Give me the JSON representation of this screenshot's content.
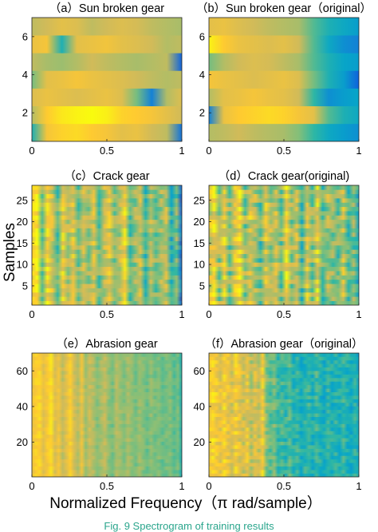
{
  "figure": {
    "ylabel": "Samples",
    "xlabel": "Normalized Frequency（π rad/sample）",
    "caption": "Fig. 9   Spectrogram of training results"
  },
  "colormap": {
    "name": "parula",
    "stops": [
      "#352a87",
      "#0f5cdd",
      "#1481d6",
      "#06a4ca",
      "#2eb7a4",
      "#87bf77",
      "#d1bb59",
      "#fec832",
      "#f9fb0e"
    ]
  },
  "chart_data": [
    {
      "id": "a",
      "type": "heatmap",
      "title": "（a）Sun broken gear",
      "xlim": [
        0,
        1
      ],
      "x_ticks": [
        "0",
        "0.5",
        "1"
      ],
      "ylim": [
        0.5,
        7
      ],
      "y_ticks": [
        "2",
        "4",
        "6"
      ],
      "n_rows": 7,
      "grid": false,
      "rows": [
        [
          0.45,
          0.85,
          0.9,
          0.92,
          0.88,
          0.85,
          0.8,
          0.82,
          0.75,
          0.72,
          0.2
        ],
        [
          0.7,
          0.88,
          0.95,
          0.98,
          1.0,
          0.97,
          0.9,
          0.88,
          0.85,
          0.8,
          0.75
        ],
        [
          0.78,
          0.82,
          0.8,
          0.78,
          0.8,
          0.82,
          0.78,
          0.6,
          0.25,
          0.7,
          0.78
        ],
        [
          0.6,
          0.8,
          0.82,
          0.85,
          0.82,
          0.8,
          0.78,
          0.75,
          0.72,
          0.7,
          0.72
        ],
        [
          0.72,
          0.68,
          0.66,
          0.7,
          0.75,
          0.72,
          0.7,
          0.68,
          0.7,
          0.72,
          0.15
        ],
        [
          0.82,
          0.85,
          0.45,
          0.8,
          0.82,
          0.84,
          0.8,
          0.78,
          0.75,
          0.7,
          0.72
        ],
        [
          0.72,
          0.75,
          0.8,
          0.78,
          0.72,
          0.75,
          0.78,
          0.76,
          0.72,
          0.7,
          0.68
        ]
      ]
    },
    {
      "id": "b",
      "type": "heatmap",
      "title": "（b）Sun broken gear（original）",
      "xlim": [
        0,
        1
      ],
      "x_ticks": [
        "0",
        "0.5",
        "1"
      ],
      "ylim": [
        0.5,
        7
      ],
      "y_ticks": [
        "2",
        "4",
        "6"
      ],
      "n_rows": 7,
      "grid": false,
      "rows": [
        [
          0.7,
          0.72,
          0.75,
          0.72,
          0.7,
          0.68,
          0.62,
          0.5,
          0.4,
          0.35,
          0.3
        ],
        [
          0.25,
          0.82,
          0.88,
          0.9,
          0.92,
          0.9,
          0.85,
          0.8,
          0.55,
          0.45,
          0.4
        ],
        [
          0.7,
          0.8,
          0.82,
          0.85,
          0.82,
          0.8,
          0.75,
          0.5,
          0.3,
          0.35,
          0.38
        ],
        [
          0.85,
          0.82,
          0.8,
          0.78,
          0.8,
          0.82,
          0.78,
          0.6,
          0.45,
          0.35,
          0.15
        ],
        [
          0.6,
          0.7,
          0.75,
          0.78,
          0.76,
          0.72,
          0.68,
          0.55,
          0.45,
          0.38,
          0.35
        ],
        [
          0.98,
          0.88,
          0.82,
          0.8,
          0.78,
          0.8,
          0.75,
          0.55,
          0.4,
          0.3,
          0.25
        ],
        [
          0.8,
          0.82,
          0.78,
          0.75,
          0.72,
          0.7,
          0.68,
          0.55,
          0.45,
          0.4,
          0.35
        ]
      ]
    },
    {
      "id": "c",
      "type": "heatmap",
      "title": "（c）Crack gear",
      "xlim": [
        0,
        1
      ],
      "x_ticks": [
        "0",
        "0.5",
        "1"
      ],
      "ylim": [
        0.5,
        28.5
      ],
      "y_ticks": [
        "5",
        "10",
        "15",
        "20",
        "25"
      ],
      "n_rows": 28,
      "grid": false,
      "column_profile": [
        0.85,
        0.95,
        0.6,
        0.9,
        0.75,
        0.55,
        0.85,
        0.7,
        0.8,
        0.6,
        0.75,
        0.65,
        0.78,
        0.58,
        0.72,
        0.8,
        0.62,
        0.7,
        0.88,
        0.55,
        0.65,
        0.75,
        0.5,
        0.7,
        0.6,
        0.68,
        0.72,
        0.45,
        0.62,
        0.2
      ],
      "noise": 0.12
    },
    {
      "id": "d",
      "type": "heatmap",
      "title": "（d）Crack gear(original)",
      "xlim": [
        0,
        1
      ],
      "x_ticks": [
        "0",
        "0.5",
        "1"
      ],
      "ylim": [
        0.5,
        28.5
      ],
      "y_ticks": [
        "5",
        "10",
        "15",
        "20",
        "25"
      ],
      "n_rows": 28,
      "grid": false,
      "column_profile": [
        0.75,
        0.9,
        0.65,
        0.85,
        0.6,
        0.78,
        0.88,
        0.62,
        0.8,
        0.7,
        0.55,
        0.82,
        0.68,
        0.75,
        0.58,
        0.9,
        0.65,
        0.72,
        0.5,
        0.8,
        0.6,
        0.85,
        0.55,
        0.7,
        0.62,
        0.58,
        0.75,
        0.5,
        0.6,
        0.45
      ],
      "noise": 0.15
    },
    {
      "id": "e",
      "type": "heatmap",
      "title": "（e）Abrasion gear",
      "xlim": [
        0,
        1
      ],
      "x_ticks": [
        "0",
        "0.5",
        "1"
      ],
      "ylim": [
        0.5,
        70
      ],
      "y_ticks": [
        "20",
        "40",
        "60"
      ],
      "n_rows": 35,
      "grid": false,
      "column_profile": [
        0.82,
        0.88,
        0.9,
        0.8,
        0.86,
        0.92,
        0.78,
        0.84,
        0.72,
        0.8,
        0.88,
        0.76,
        0.7,
        0.82,
        0.66,
        0.74,
        0.7,
        0.62,
        0.68,
        0.72,
        0.64,
        0.6,
        0.7,
        0.66,
        0.62,
        0.68,
        0.64,
        0.6,
        0.66,
        0.62,
        0.58,
        0.64,
        0.6,
        0.62,
        0.58,
        0.6,
        0.62,
        0.56,
        0.6,
        0.45
      ],
      "noise": 0.04
    },
    {
      "id": "f",
      "type": "heatmap",
      "title": "（f）Abrasion gear（original）",
      "xlim": [
        0,
        1
      ],
      "x_ticks": [
        "0",
        "0.5",
        "1"
      ],
      "ylim": [
        0.5,
        70
      ],
      "y_ticks": [
        "20",
        "40",
        "60"
      ],
      "n_rows": 35,
      "grid": false,
      "column_profile": [
        0.84,
        0.9,
        0.86,
        0.8,
        0.88,
        0.82,
        0.78,
        0.86,
        0.8,
        0.75,
        0.82,
        0.7,
        0.78,
        0.72,
        0.86,
        0.62,
        0.55,
        0.6,
        0.5,
        0.52,
        0.48,
        0.55,
        0.46,
        0.5,
        0.44,
        0.48,
        0.5,
        0.45,
        0.52,
        0.46,
        0.42,
        0.5,
        0.45,
        0.48,
        0.44,
        0.5,
        0.46,
        0.42,
        0.48,
        0.4
      ],
      "noise": 0.09
    }
  ]
}
